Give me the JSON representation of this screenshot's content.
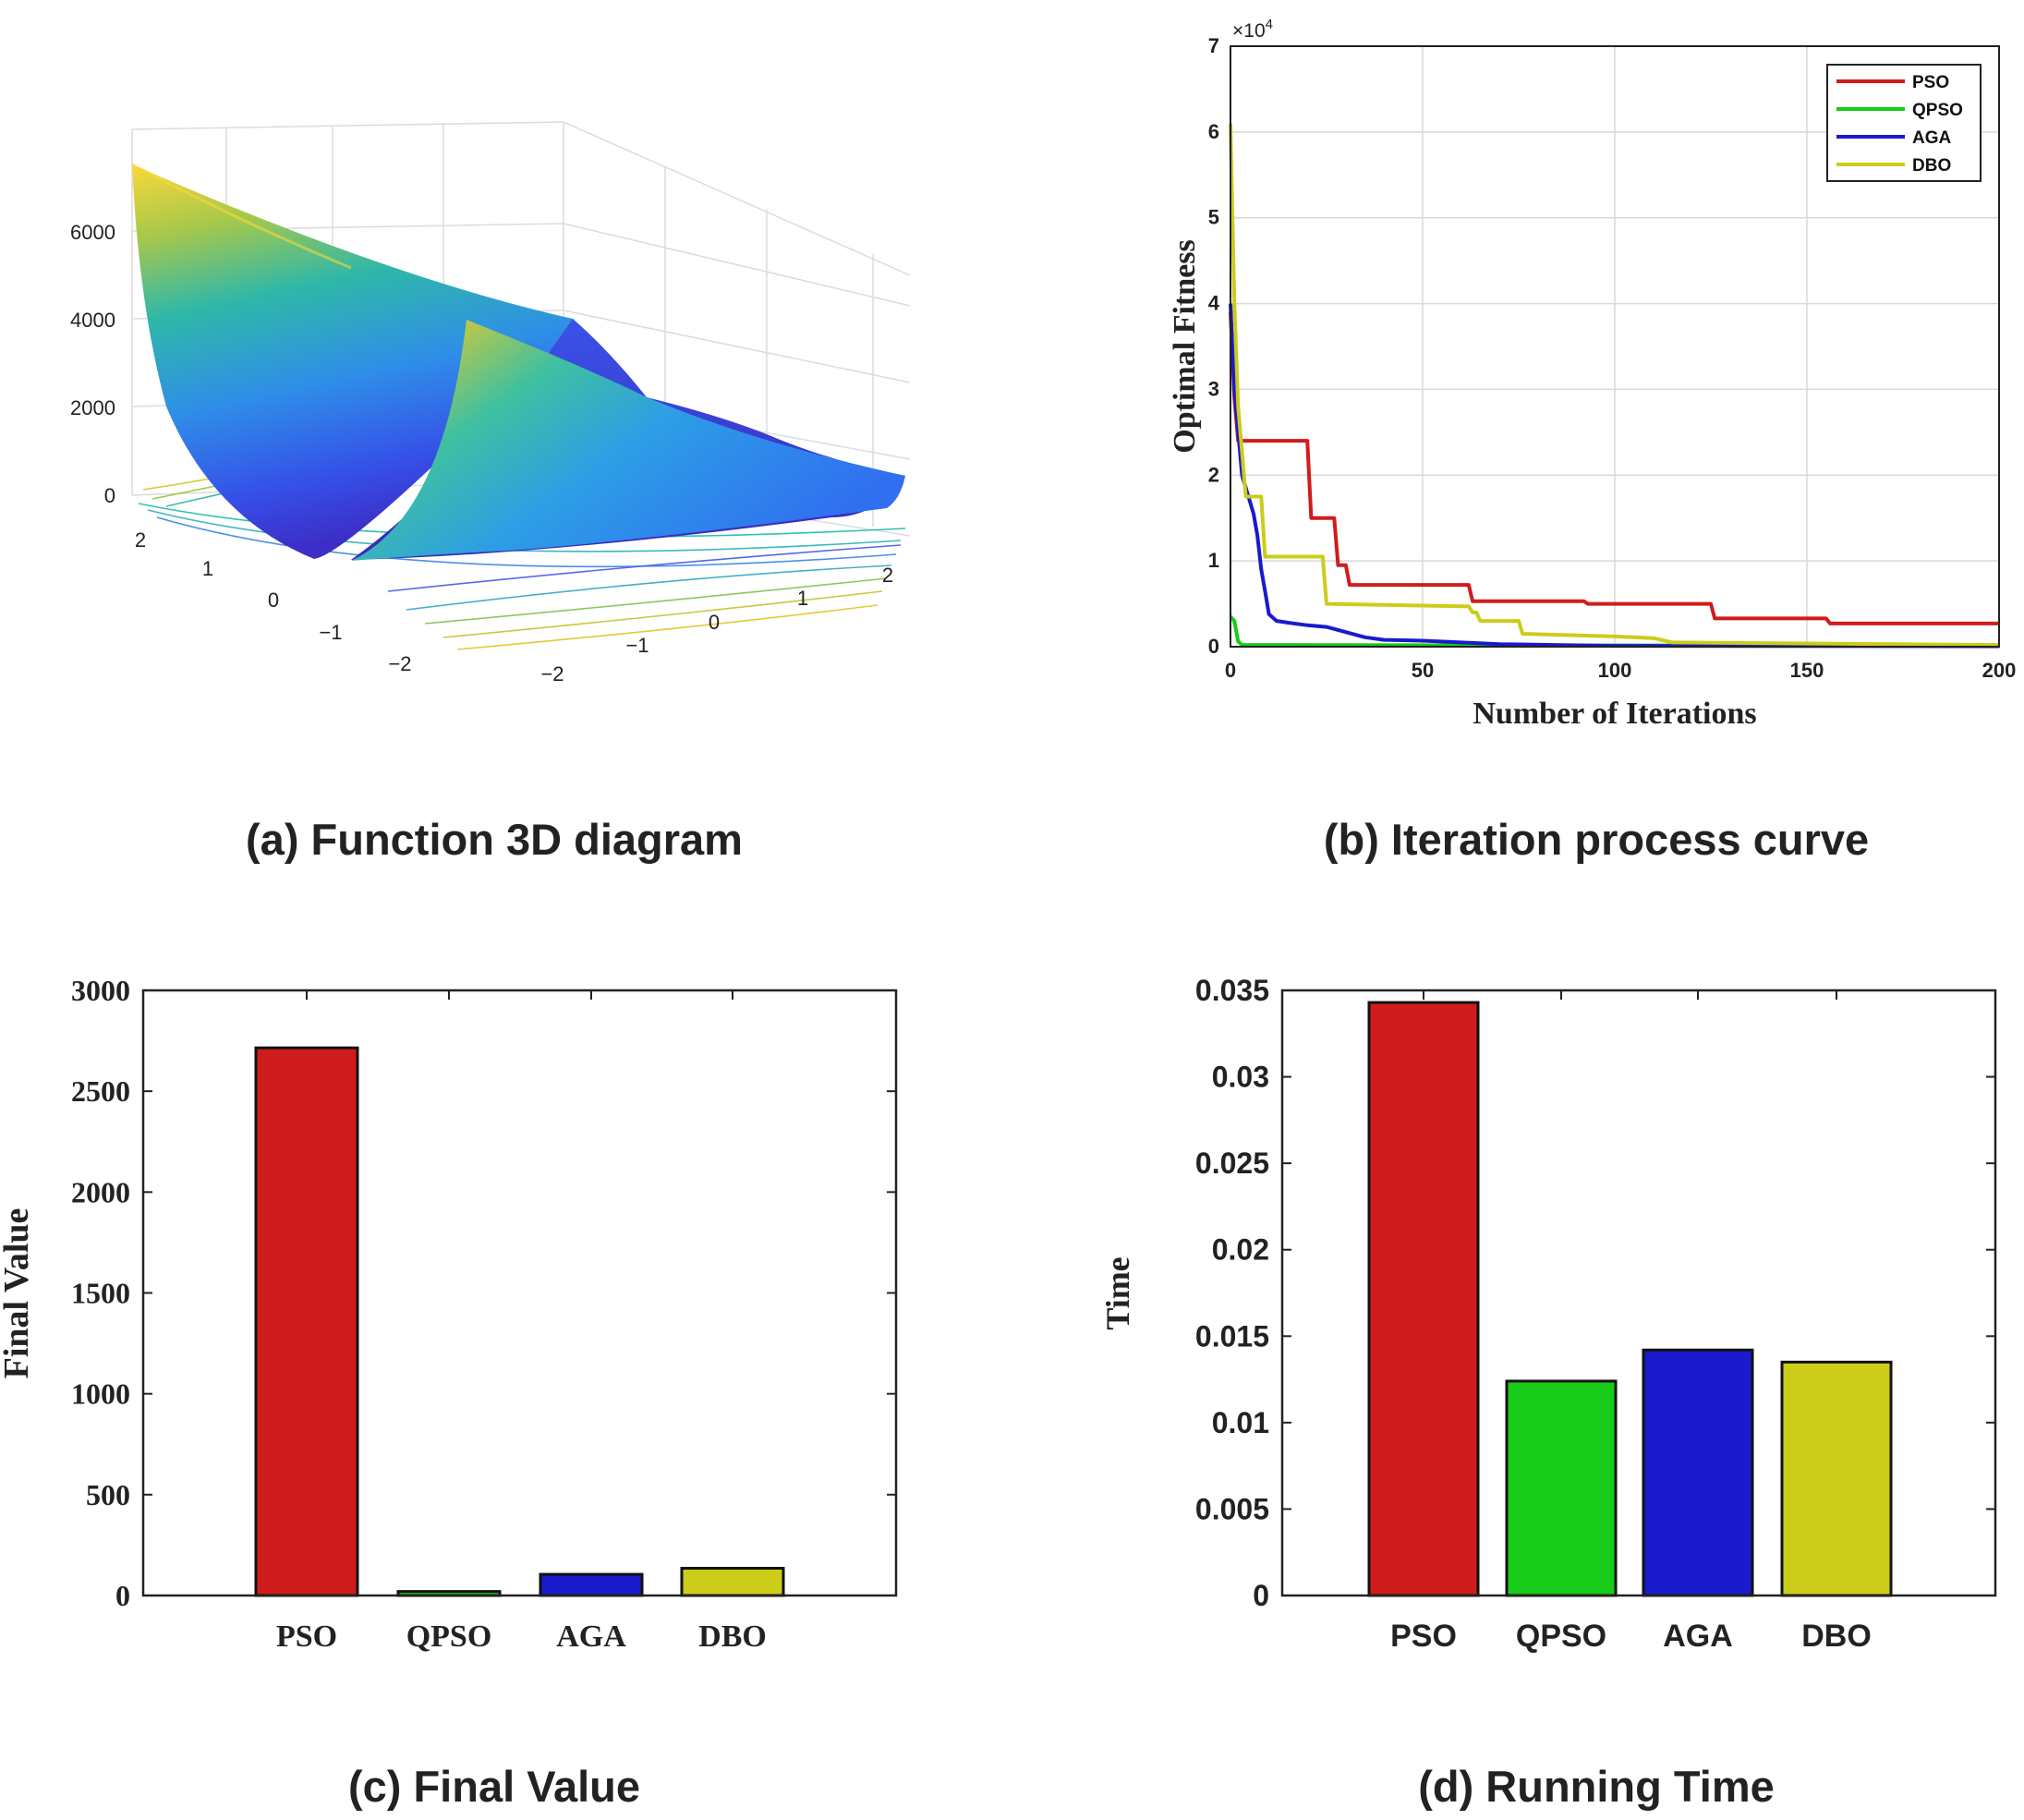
{
  "captions": {
    "a": "(a) Function 3D diagram",
    "b": "(b) Iteration process curve",
    "c": "(c) Final Value",
    "d": "(d) Running Time"
  },
  "colors": {
    "PSO": "#d01c1c",
    "QPSO": "#19cc19",
    "AGA": "#1a1acc",
    "DBO": "#cccc1a"
  },
  "chart_data": [
    {
      "id": "a",
      "type": "surface3d",
      "ztick_labels": [
        "0",
        "2000",
        "4000",
        "6000"
      ],
      "xtick_labels": [
        "−2",
        "−1",
        "0",
        "1",
        "2"
      ],
      "ytick_labels": [
        "−2",
        "−1",
        "0",
        "1",
        "2"
      ],
      "colormap": "parula"
    },
    {
      "id": "b",
      "type": "line",
      "xlabel": "Number of Iterations",
      "ylabel": "Optimal Fitness",
      "multiplier": "×10",
      "multiplier_exp": "4",
      "xlim": [
        0,
        200
      ],
      "ylim": [
        0,
        7
      ],
      "xticks": [
        0,
        50,
        100,
        150,
        200
      ],
      "yticks": [
        0,
        1,
        2,
        3,
        4,
        5,
        6,
        7
      ],
      "grid": true,
      "legend_position": "top-right",
      "series": [
        {
          "name": "PSO",
          "points": [
            [
              0,
              3.9
            ],
            [
              1,
              2.9
            ],
            [
              2,
              2.4
            ],
            [
              20,
              2.4
            ],
            [
              21,
              1.5
            ],
            [
              27,
              1.5
            ],
            [
              28,
              0.95
            ],
            [
              30,
              0.95
            ],
            [
              31,
              0.72
            ],
            [
              62,
              0.72
            ],
            [
              63,
              0.53
            ],
            [
              92,
              0.53
            ],
            [
              93,
              0.5
            ],
            [
              125,
              0.5
            ],
            [
              126,
              0.33
            ],
            [
              155,
              0.33
            ],
            [
              156,
              0.27
            ],
            [
              200,
              0.27
            ]
          ]
        },
        {
          "name": "QPSO",
          "points": [
            [
              0,
              0.35
            ],
            [
              1,
              0.3
            ],
            [
              2,
              0.06
            ],
            [
              3,
              0.02
            ],
            [
              200,
              0.01
            ]
          ]
        },
        {
          "name": "AGA",
          "points": [
            [
              0,
              4.0
            ],
            [
              1,
              3.0
            ],
            [
              3,
              2.0
            ],
            [
              5,
              1.7
            ],
            [
              6,
              1.55
            ],
            [
              7,
              1.3
            ],
            [
              8,
              0.9
            ],
            [
              9,
              0.65
            ],
            [
              10,
              0.38
            ],
            [
              12,
              0.3
            ],
            [
              15,
              0.28
            ],
            [
              20,
              0.25
            ],
            [
              25,
              0.23
            ],
            [
              30,
              0.17
            ],
            [
              35,
              0.11
            ],
            [
              40,
              0.08
            ],
            [
              50,
              0.07
            ],
            [
              60,
              0.05
            ],
            [
              70,
              0.03
            ],
            [
              100,
              0.01
            ],
            [
              200,
              0.005
            ]
          ]
        },
        {
          "name": "DBO",
          "points": [
            [
              0,
              6.1
            ],
            [
              1,
              4.0
            ],
            [
              2,
              2.8
            ],
            [
              4,
              1.75
            ],
            [
              8,
              1.75
            ],
            [
              9,
              1.05
            ],
            [
              24,
              1.05
            ],
            [
              25,
              0.5
            ],
            [
              62,
              0.47
            ],
            [
              63,
              0.4
            ],
            [
              64,
              0.4
            ],
            [
              65,
              0.3
            ],
            [
              75,
              0.3
            ],
            [
              76,
              0.15
            ],
            [
              100,
              0.12
            ],
            [
              110,
              0.1
            ],
            [
              115,
              0.05
            ],
            [
              200,
              0.02
            ]
          ]
        }
      ]
    },
    {
      "id": "c",
      "type": "bar",
      "ylabel": "Final Value",
      "categories": [
        "PSO",
        "QPSO",
        "AGA",
        "DBO"
      ],
      "values": [
        2715,
        20,
        105,
        135
      ],
      "ylim": [
        0,
        3000
      ],
      "yticks": [
        0,
        500,
        1000,
        1500,
        2000,
        2500,
        3000
      ]
    },
    {
      "id": "d",
      "type": "bar",
      "ylabel": "Time",
      "categories": [
        "PSO",
        "QPSO",
        "AGA",
        "DBO"
      ],
      "values": [
        0.0343,
        0.0124,
        0.0142,
        0.0135
      ],
      "ylim": [
        0,
        0.035
      ],
      "ytick_labels": [
        "0",
        "0.005",
        "0.01",
        "0.015",
        "0.02",
        "0.025",
        "0.03",
        "0.035"
      ]
    }
  ]
}
